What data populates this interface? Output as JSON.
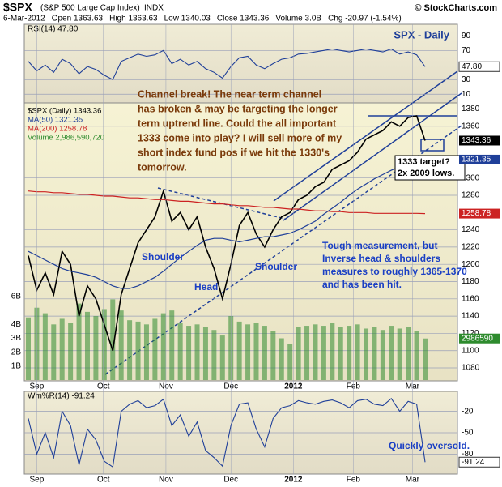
{
  "header": {
    "symbol": "$SPX",
    "name": "(S&P 500 Large Cap Index)",
    "exchange": "INDX",
    "logo": "© StockCharts.com",
    "info": [
      "6-Mar-2012",
      "Open 1363.63",
      "High 1363.63",
      "Low 1340.03",
      "Close 1343.36",
      "Volume 3.0B",
      "Chg -20.97 (-1.54%)"
    ]
  },
  "chart_data": [
    {
      "type": "line",
      "legend": "RSI(14) 47.80",
      "ylim": [
        -2,
        106
      ],
      "yticks": [
        90,
        70,
        30,
        10
      ],
      "grid": true,
      "series": [
        {
          "name": "RSI(14)",
          "color": "#1f3f99",
          "values": [
            55,
            42,
            50,
            40,
            58,
            52,
            38,
            48,
            44,
            36,
            30,
            55,
            60,
            65,
            62,
            64,
            70,
            52,
            58,
            50,
            55,
            45,
            40,
            32,
            48,
            60,
            62,
            50,
            45,
            52,
            58,
            60,
            65,
            66,
            68,
            70,
            72,
            70,
            68,
            70,
            72,
            70,
            68,
            72,
            65,
            68,
            64,
            47.8
          ]
        }
      ],
      "right_labels": [
        {
          "value": 47.8,
          "label": "47.80"
        }
      ],
      "title": "SPX - Daily"
    },
    {
      "type": "price",
      "ylim": [
        1065,
        1387
      ],
      "yticks": [
        1380,
        1360,
        1300,
        1280,
        1240,
        1220,
        1200,
        1180,
        1160,
        1140,
        1120,
        1100,
        1080
      ],
      "grid": true,
      "xlim": [
        0,
        47
      ],
      "xticks": [
        {
          "value": 1,
          "label": "Sep"
        },
        {
          "value": 8.9,
          "label": "Oct"
        },
        {
          "value": 16.3,
          "label": "Nov"
        },
        {
          "value": 24,
          "label": "Dec"
        },
        {
          "value": 31.4,
          "label": "2012"
        },
        {
          "value": 38.5,
          "label": "Feb"
        },
        {
          "value": 45.5,
          "label": "Mar"
        }
      ],
      "legend": [
        "$SPX (Daily) 1343.36",
        "MA(50) 1321.35",
        "MA(200) 1258.78",
        "Volume 2,986,590,720"
      ],
      "series": [
        {
          "name": "$SPX",
          "color": "#000000",
          "values": [
            1210,
            1170,
            1190,
            1165,
            1215,
            1200,
            1140,
            1175,
            1160,
            1130,
            1100,
            1165,
            1195,
            1225,
            1240,
            1255,
            1285,
            1250,
            1260,
            1240,
            1255,
            1220,
            1195,
            1160,
            1200,
            1245,
            1260,
            1235,
            1220,
            1240,
            1255,
            1260,
            1275,
            1280,
            1290,
            1295,
            1310,
            1315,
            1320,
            1330,
            1345,
            1350,
            1355,
            1365,
            1360,
            1370,
            1372,
            1343.36
          ]
        },
        {
          "name": "MA(50)",
          "color": "#1f3f99",
          "values": [
            1215,
            1210,
            1205,
            1200,
            1195,
            1192,
            1190,
            1188,
            1185,
            1180,
            1175,
            1172,
            1172,
            1175,
            1180,
            1185,
            1192,
            1200,
            1208,
            1215,
            1222,
            1228,
            1230,
            1230,
            1228,
            1226,
            1228,
            1230,
            1232,
            1232,
            1234,
            1236,
            1240,
            1245,
            1250,
            1258,
            1265,
            1272,
            1280,
            1287,
            1293,
            1299,
            1304,
            1309,
            1313,
            1317,
            1319,
            1321.35
          ]
        },
        {
          "name": "MA(200)",
          "color": "#cc2222",
          "values": [
            1285,
            1284,
            1284,
            1283,
            1283,
            1282,
            1281,
            1281,
            1280,
            1279,
            1279,
            1278,
            1277,
            1277,
            1276,
            1275,
            1275,
            1274,
            1273,
            1273,
            1272,
            1271,
            1270,
            1270,
            1269,
            1268,
            1268,
            1267,
            1266,
            1266,
            1265,
            1264,
            1264,
            1263,
            1262,
            1262,
            1261,
            1261,
            1260,
            1260,
            1260,
            1259,
            1259,
            1259,
            1259,
            1259,
            1259,
            1258.78
          ]
        }
      ],
      "right_labels": [
        {
          "value": 1343.36,
          "label": "1343.36",
          "color": "#000000"
        },
        {
          "value": 1321.35,
          "label": "1321.35",
          "color": "#1f3f99"
        },
        {
          "value": 1258.78,
          "label": "1258.78",
          "color": "#cc2222"
        }
      ],
      "volume": {
        "color": "#2e8b2e",
        "ylim": [
          0,
          6000000000
        ],
        "yticks": [
          {
            "value": 6000000000,
            "label": "6B"
          },
          {
            "value": 4000000000,
            "label": "4B"
          },
          {
            "value": 3000000000,
            "label": "3B"
          },
          {
            "value": 2000000000,
            "label": "2B"
          },
          {
            "value": 1000000000,
            "label": "1B"
          }
        ],
        "values": [
          4500000000.0,
          5200000000.0,
          4800000000.0,
          4000000000.0,
          4400000000.0,
          4100000000.0,
          5500000000.0,
          4900000000.0,
          4600000000.0,
          5100000000.0,
          5800000000.0,
          5000000000.0,
          4300000000.0,
          4200000000.0,
          4000000000.0,
          4400000000.0,
          4800000000.0,
          5000000000.0,
          4100000000.0,
          3900000000.0,
          4000000000.0,
          3800000000.0,
          3600000000.0,
          3200000000.0,
          4600000000.0,
          4200000000.0,
          4000000000.0,
          4100000000.0,
          3900000000.0,
          3500000000.0,
          3000000000.0,
          2600000000.0,
          3800000000.0,
          3900000000.0,
          4000000000.0,
          3900000000.0,
          4100000000.0,
          3800000000.0,
          3900000000.0,
          4000000000.0,
          3700000000.0,
          3800000000.0,
          3600000000.0,
          3900000000.0,
          3700000000.0,
          3800000000.0,
          3500000000.0,
          2986590720
        ],
        "last_label": "2986590"
      },
      "annotations": {
        "channel": [
          "Channel break! The near term channel",
          "has broken & may be targeting the longer",
          "term uptrend line. Could the all important",
          "1333 come into play? I will sell more of my",
          "short index fund pos if we hit the 1330's",
          "tomorrow."
        ],
        "target": [
          "1333 target?",
          "2x 2009 lows."
        ],
        "hs": [
          "Tough measurement, but",
          "Inverse head & shoulders",
          "measures to roughly 1365-1370",
          "and has been hit."
        ],
        "shoulder_left": "Shoulder",
        "head": "Head",
        "shoulder_right": "Shoulder"
      }
    },
    {
      "type": "line",
      "legend": "Wm%R(14) -91.24",
      "ylim": [
        -108,
        8
      ],
      "yticks": [
        -20,
        -50,
        -80
      ],
      "grid": true,
      "series": [
        {
          "name": "Wm%R(14)",
          "color": "#1f3f99",
          "values": [
            -30,
            -80,
            -50,
            -85,
            -20,
            -40,
            -95,
            -45,
            -60,
            -90,
            -98,
            -20,
            -10,
            -5,
            -15,
            -12,
            -3,
            -40,
            -25,
            -55,
            -35,
            -75,
            -85,
            -97,
            -40,
            -10,
            -8,
            -45,
            -70,
            -30,
            -15,
            -12,
            -5,
            -8,
            -10,
            -6,
            -4,
            -8,
            -15,
            -5,
            -3,
            -10,
            -12,
            -2,
            -20,
            -6,
            -10,
            -91.24
          ]
        }
      ],
      "right_labels": [
        {
          "value": -91.24,
          "label": "-91.24"
        }
      ],
      "note": "Quickly oversold."
    }
  ]
}
